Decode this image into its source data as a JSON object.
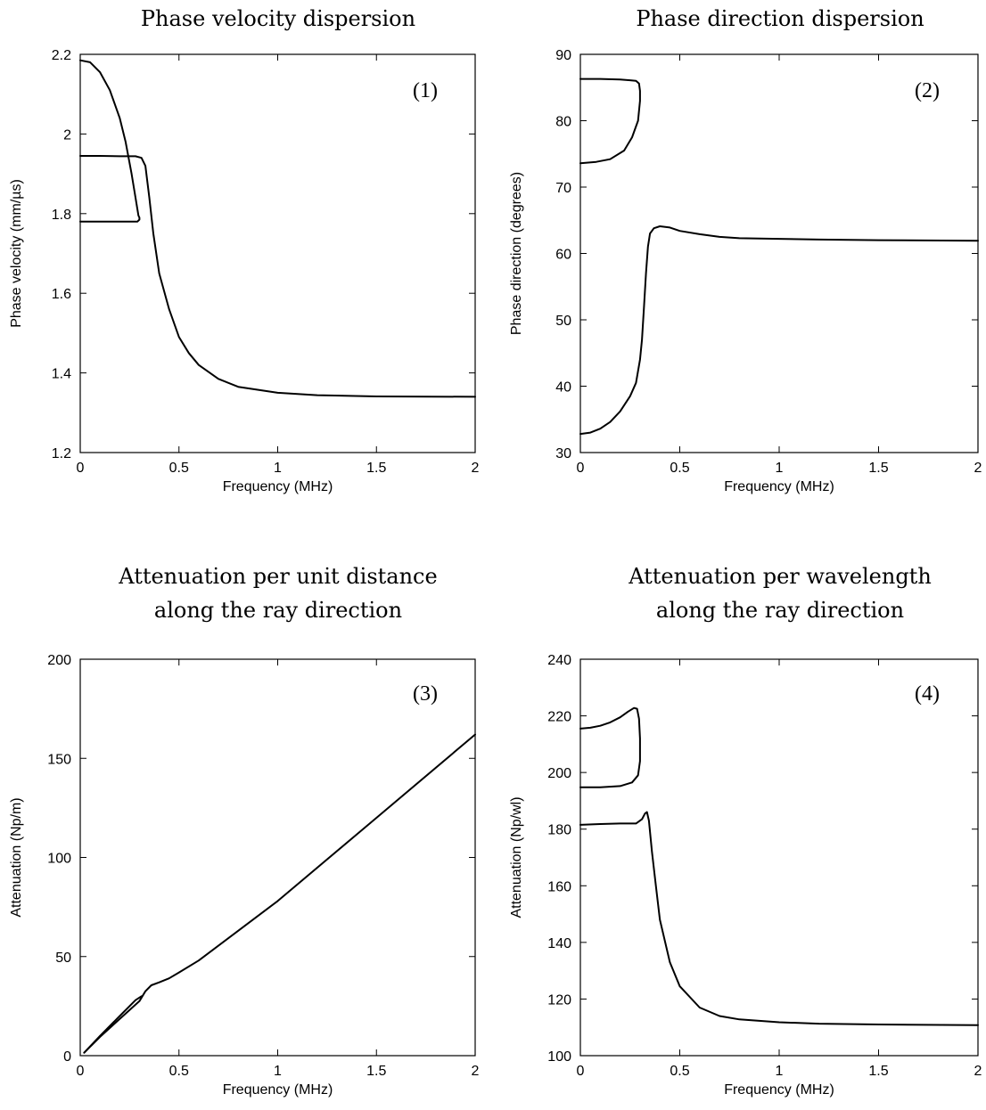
{
  "chart_data": [
    {
      "id": "p1",
      "type": "line",
      "title": [
        "Phase velocity dispersion"
      ],
      "panel_label": "(1)",
      "xlabel": "Frequency (MHz)",
      "ylabel": "Phase velocity (mm/µs)",
      "xlim": [
        0,
        2
      ],
      "ylim": [
        1.2,
        2.2
      ],
      "xticks": [
        0,
        0.5,
        1,
        1.5,
        2
      ],
      "xtick_labels": [
        "0",
        "0.5",
        "1",
        "1.5",
        "2"
      ],
      "yticks": [
        1.2,
        1.4,
        1.6,
        1.8,
        2,
        2.2
      ],
      "ytick_labels": [
        "1.2",
        "1.4",
        "1.6",
        "1.8",
        "2",
        "2.2"
      ],
      "series": [
        {
          "x": [
            0,
            0.05,
            0.1,
            0.15,
            0.2,
            0.23,
            0.26,
            0.28,
            0.29,
            0.295,
            0.3,
            0.3,
            0.29,
            0.25,
            0.2,
            0.1,
            0.0
          ],
          "y": [
            2.185,
            2.18,
            2.155,
            2.11,
            2.04,
            1.98,
            1.9,
            1.84,
            1.81,
            1.795,
            1.79,
            1.785,
            1.78,
            1.78,
            1.78,
            1.78,
            1.78
          ]
        },
        {
          "x": [
            0,
            0.1,
            0.2,
            0.28,
            0.31,
            0.33,
            0.35,
            0.37,
            0.4,
            0.45,
            0.5,
            0.55,
            0.6,
            0.7,
            0.8,
            1.0,
            1.2,
            1.5,
            2.0
          ],
          "y": [
            1.945,
            1.945,
            1.944,
            1.944,
            1.94,
            1.92,
            1.84,
            1.75,
            1.65,
            1.56,
            1.49,
            1.45,
            1.42,
            1.385,
            1.365,
            1.35,
            1.344,
            1.341,
            1.34
          ]
        }
      ]
    },
    {
      "id": "p2",
      "type": "line",
      "title": [
        "Phase direction dispersion"
      ],
      "panel_label": "(2)",
      "xlabel": "Frequency (MHz)",
      "ylabel": "Phase direction (degrees)",
      "xlim": [
        0,
        2
      ],
      "ylim": [
        30,
        90
      ],
      "xticks": [
        0,
        0.5,
        1,
        1.5,
        2
      ],
      "xtick_labels": [
        "0",
        "0.5",
        "1",
        "1.5",
        "2"
      ],
      "yticks": [
        30,
        40,
        50,
        60,
        70,
        80,
        90
      ],
      "ytick_labels": [
        "30",
        "40",
        "50",
        "60",
        "70",
        "80",
        "90"
      ],
      "series": [
        {
          "x": [
            0,
            0.1,
            0.2,
            0.25,
            0.28,
            0.295,
            0.3,
            0.3,
            0.29,
            0.26,
            0.22,
            0.15,
            0.08,
            0.0
          ],
          "y": [
            86.3,
            86.3,
            86.2,
            86.1,
            86,
            85.6,
            84.5,
            83,
            80,
            77.5,
            75.5,
            74.2,
            73.8,
            73.6
          ]
        },
        {
          "x": [
            0,
            0.05,
            0.1,
            0.15,
            0.2,
            0.25,
            0.28,
            0.3,
            0.31,
            0.32,
            0.33,
            0.34,
            0.35,
            0.37,
            0.4,
            0.45,
            0.5,
            0.6,
            0.7,
            0.8,
            1.0,
            1.2,
            1.5,
            2.0
          ],
          "y": [
            32.8,
            33,
            33.6,
            34.6,
            36.2,
            38.5,
            40.5,
            44,
            47,
            52,
            57,
            61,
            63,
            63.8,
            64.1,
            63.9,
            63.4,
            62.9,
            62.5,
            62.3,
            62.2,
            62.1,
            62.0,
            61.9
          ]
        }
      ]
    },
    {
      "id": "p3",
      "type": "line",
      "title": [
        "Attenuation per unit distance",
        "along the ray direction"
      ],
      "panel_label": "(3)",
      "xlabel": "Frequency (MHz)",
      "ylabel": "Attenuation (Np/m)",
      "xlim": [
        0,
        2
      ],
      "ylim": [
        0,
        200
      ],
      "xticks": [
        0,
        0.5,
        1,
        1.5,
        2
      ],
      "xtick_labels": [
        "0",
        "0.5",
        "1",
        "1.5",
        "2"
      ],
      "yticks": [
        0,
        50,
        100,
        150,
        200
      ],
      "ytick_labels": [
        "0",
        "50",
        "100",
        "150",
        "200"
      ],
      "series": [
        {
          "x": [
            0.02,
            0.1,
            0.2,
            0.28,
            0.31
          ],
          "y": [
            1.5,
            10,
            20,
            28,
            30
          ]
        },
        {
          "x": [
            0.02,
            0.1,
            0.2,
            0.3,
            0.33,
            0.36,
            0.4,
            0.45,
            0.5,
            0.6,
            0.8,
            1.0,
            1.5,
            2.0
          ],
          "y": [
            1.5,
            9.5,
            18.5,
            27.5,
            32.5,
            35.5,
            37,
            39,
            42,
            48,
            63,
            78,
            120,
            162
          ]
        }
      ]
    },
    {
      "id": "p4",
      "type": "line",
      "title": [
        "Attenuation per wavelength",
        "along the ray direction"
      ],
      "panel_label": "(4)",
      "xlabel": "Frequency (MHz)",
      "ylabel": "Attenuation (Np/wl)",
      "xlim": [
        0,
        2
      ],
      "ylim": [
        100,
        240
      ],
      "xticks": [
        0,
        0.5,
        1,
        1.5,
        2
      ],
      "xtick_labels": [
        "0",
        "0.5",
        "1",
        "1.5",
        "2"
      ],
      "yticks": [
        100,
        120,
        140,
        160,
        180,
        200,
        220,
        240
      ],
      "ytick_labels": [
        "100",
        "120",
        "140",
        "160",
        "180",
        "200",
        "220",
        "240"
      ],
      "series": [
        {
          "x": [
            0,
            0.05,
            0.1,
            0.15,
            0.2,
            0.24,
            0.27,
            0.285,
            0.295,
            0.3,
            0.3,
            0.29,
            0.26,
            0.2,
            0.1,
            0.0
          ],
          "y": [
            215.5,
            215.8,
            216.5,
            217.7,
            219.5,
            221.5,
            222.8,
            222.5,
            219,
            212,
            204,
            199,
            196.5,
            195.2,
            194.8,
            194.8
          ]
        },
        {
          "x": [
            0,
            0.1,
            0.2,
            0.28,
            0.31,
            0.325,
            0.335,
            0.345,
            0.36,
            0.38,
            0.4,
            0.45,
            0.5,
            0.6,
            0.7,
            0.8,
            1.0,
            1.2,
            1.5,
            2.0
          ],
          "y": [
            181.5,
            181.8,
            182,
            182,
            183.5,
            185.5,
            186,
            183,
            172,
            160,
            148,
            133,
            124.5,
            117,
            114,
            112.8,
            111.8,
            111.3,
            111.0,
            110.8
          ]
        }
      ]
    }
  ]
}
